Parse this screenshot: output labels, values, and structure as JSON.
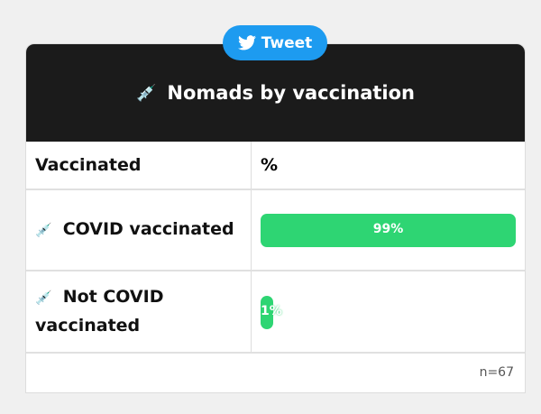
{
  "tweet_button": {
    "label": "Tweet",
    "icon": "twitter-bird-icon",
    "color": "#1d9bf0"
  },
  "header": {
    "title": "Nomads by vaccination",
    "icon": "syringe-icon"
  },
  "table": {
    "columns": [
      "Vaccinated",
      "%"
    ],
    "rows": [
      {
        "label": "COVID vaccinated",
        "icon": "syringe-icon",
        "percent": 99,
        "percent_label": "99%"
      },
      {
        "label": "Not COVID vaccinated",
        "icon": "syringe-icon",
        "percent": 1,
        "percent_label": "1%"
      }
    ],
    "bar_color": "#2ed573"
  },
  "footer": {
    "sample_size": "n=67"
  }
}
